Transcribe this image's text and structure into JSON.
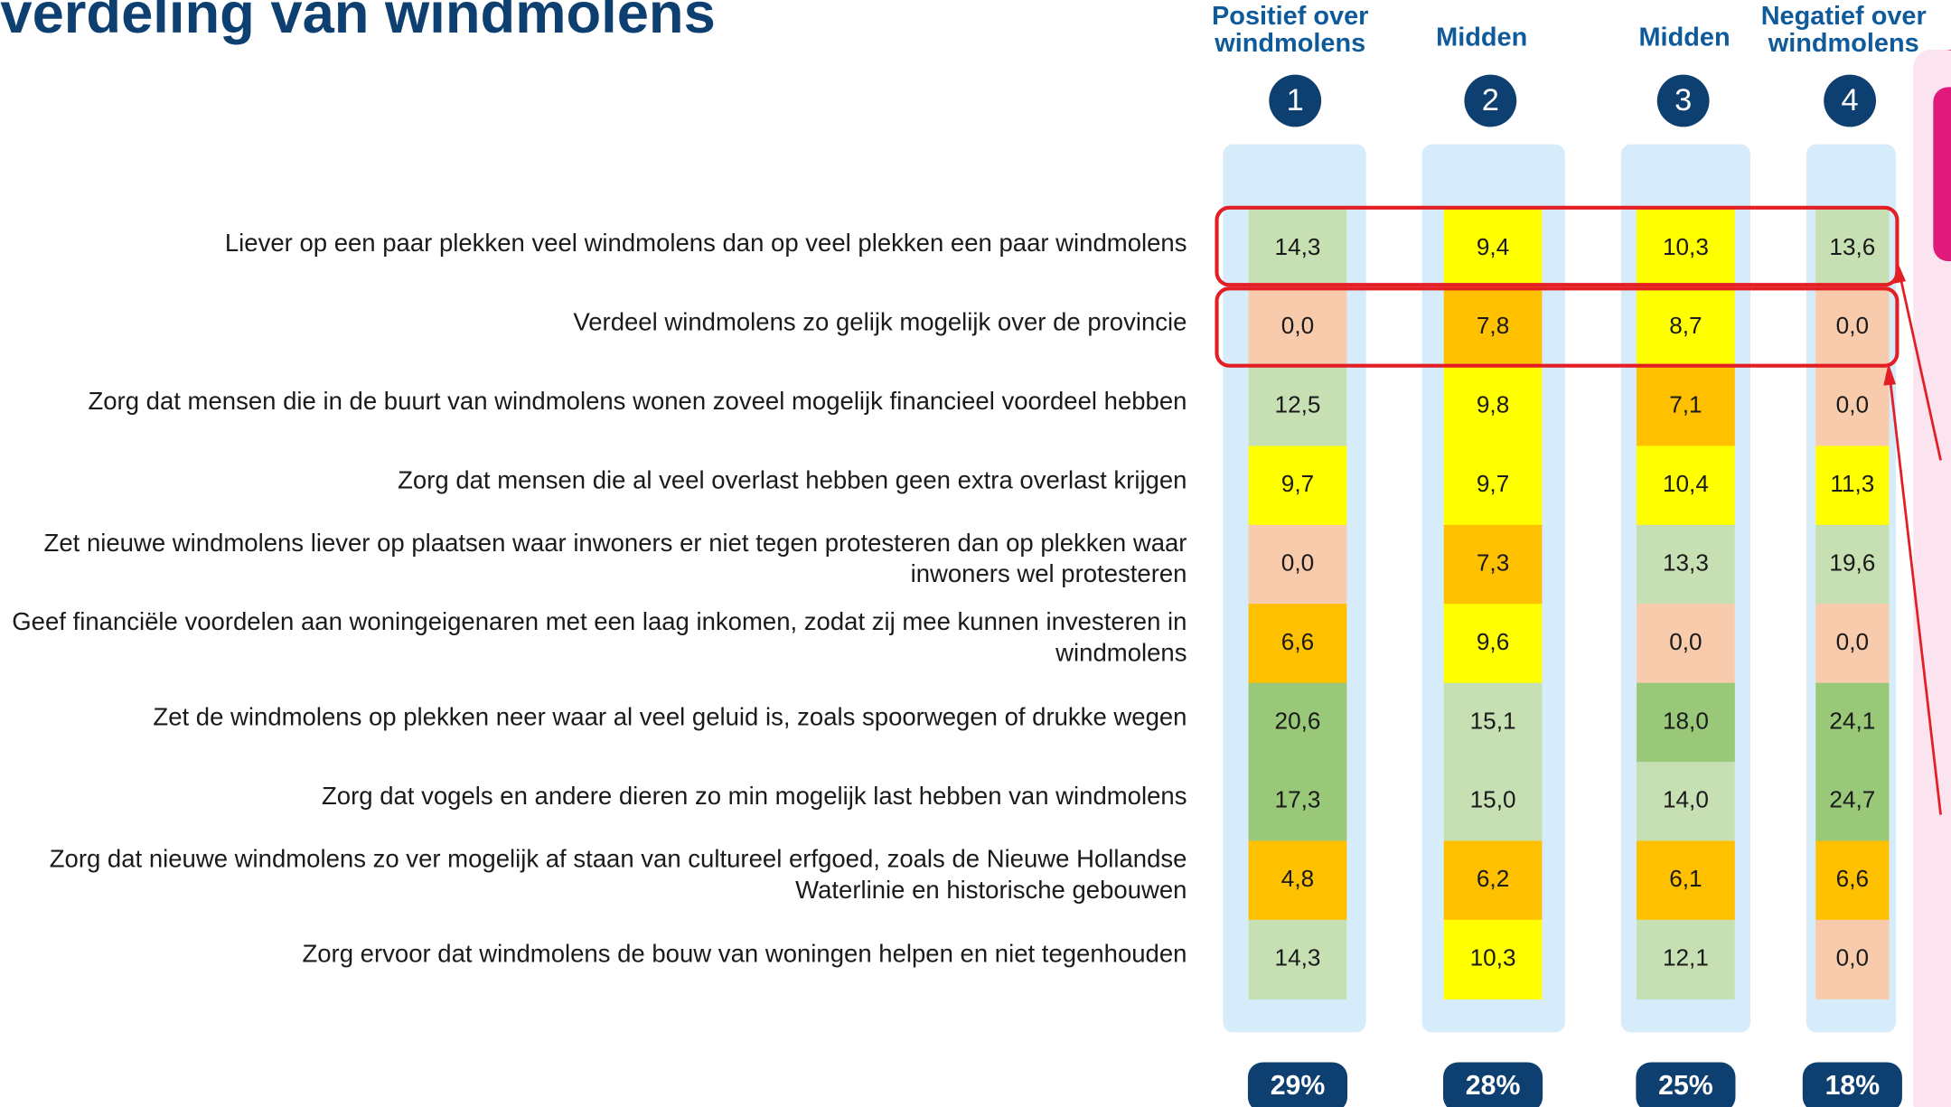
{
  "title": "verdeling van windmolens",
  "columns": [
    {
      "header": [
        "Positief over",
        "windmolens"
      ],
      "number": "1",
      "share": "29%"
    },
    {
      "header": [
        "Midden"
      ],
      "number": "2",
      "share": "28%"
    },
    {
      "header": [
        "Midden"
      ],
      "number": "3",
      "share": "25%"
    },
    {
      "header": [
        "Negatief over",
        "windmolens"
      ],
      "number": "4",
      "share": "18%"
    }
  ],
  "rows": [
    {
      "label": [
        "Liever op een paar plekken veel windmolens dan op veel plekken een paar windmolens"
      ],
      "values": [
        "14,3",
        "9,4",
        "10,3",
        "13,6"
      ],
      "colors": [
        "#c6e0b4",
        "#ffff00",
        "#ffff00",
        "#c6e0b4"
      ]
    },
    {
      "label": [
        "Verdeel windmolens zo gelijk mogelijk over de provincie"
      ],
      "values": [
        "0,0",
        "7,8",
        "8,7",
        "0,0"
      ],
      "colors": [
        "#f8cbad",
        "#ffc000",
        "#ffff00",
        "#f8cbad"
      ]
    },
    {
      "label": [
        "Zorg dat mensen die in de buurt van windmolens wonen zoveel mogelijk financieel voordeel hebben"
      ],
      "values": [
        "12,5",
        "9,8",
        "7,1",
        "0,0"
      ],
      "colors": [
        "#c6e0b4",
        "#ffff00",
        "#ffc000",
        "#f8cbad"
      ]
    },
    {
      "label": [
        "Zorg dat mensen die al veel overlast hebben geen extra overlast krijgen"
      ],
      "values": [
        "9,7",
        "9,7",
        "10,4",
        "11,3"
      ],
      "colors": [
        "#ffff00",
        "#ffff00",
        "#ffff00",
        "#ffff00"
      ]
    },
    {
      "label": [
        "Zet nieuwe windmolens liever op plaatsen waar inwoners er niet tegen protesteren dan op plekken waar",
        "inwoners wel protesteren"
      ],
      "values": [
        "0,0",
        "7,3",
        "13,3",
        "19,6"
      ],
      "colors": [
        "#f8cbad",
        "#ffc000",
        "#c6e0b4",
        "#c6e0b4"
      ]
    },
    {
      "label": [
        "Geef financiële voordelen aan woningeigenaren met een laag inkomen, zodat zij mee kunnen investeren in",
        "windmolens"
      ],
      "values": [
        "6,6",
        "9,6",
        "0,0",
        "0,0"
      ],
      "colors": [
        "#ffc000",
        "#ffff00",
        "#f8cbad",
        "#f8cbad"
      ]
    },
    {
      "label": [
        "Zet de windmolens op plekken neer waar al veel geluid is, zoals spoorwegen of drukke wegen"
      ],
      "values": [
        "20,6",
        "15,1",
        "18,0",
        "24,1"
      ],
      "colors": [
        "#98c878",
        "#c6e0b4",
        "#98c878",
        "#98c878"
      ]
    },
    {
      "label": [
        "Zorg dat vogels en andere dieren zo min mogelijk last hebben van windmolens"
      ],
      "values": [
        "17,3",
        "15,0",
        "14,0",
        "24,7"
      ],
      "colors": [
        "#98c878",
        "#c6e0b4",
        "#c6e0b4",
        "#98c878"
      ]
    },
    {
      "label": [
        "Zorg dat nieuwe windmolens zo ver mogelijk af staan van cultureel erfgoed, zoals de Nieuwe Hollandse",
        "Waterlinie en historische gebouwen"
      ],
      "values": [
        "4,8",
        "6,2",
        "6,1",
        "6,6"
      ],
      "colors": [
        "#ffc000",
        "#ffc000",
        "#ffc000",
        "#ffc000"
      ]
    },
    {
      "label": [
        "Zorg ervoor dat windmolens de bouw van woningen helpen en niet tegenhouden"
      ],
      "values": [
        "14,3",
        "10,3",
        "12,1",
        "0,0"
      ],
      "colors": [
        "#c6e0b4",
        "#ffff00",
        "#c6e0b4",
        "#f8cbad"
      ]
    }
  ]
}
